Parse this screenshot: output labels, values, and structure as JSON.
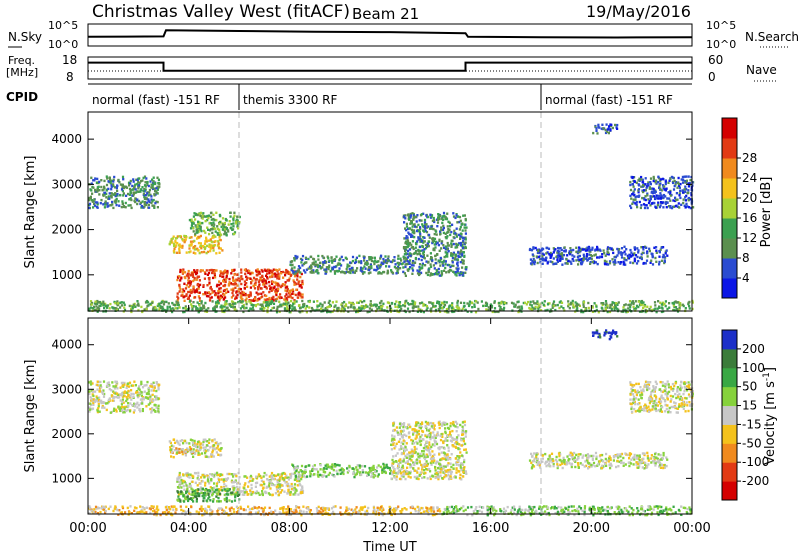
{
  "header": {
    "title": "Christmas Valley West (fitACF)",
    "beam": "Beam 21",
    "date": "19/May/2016"
  },
  "chart_data": [
    {
      "type": "line",
      "panel": "noise",
      "left_label": "N.Sky",
      "right_label": "N.Search",
      "left_ticks": [
        "10^5",
        "10^0"
      ],
      "right_ticks": [
        "10^5",
        "10^0"
      ],
      "x": [
        0,
        3,
        3.1,
        6,
        9,
        12,
        15,
        15.1,
        18,
        21,
        24
      ],
      "series": [
        {
          "values": [
            2.0,
            2.1,
            3.8,
            3.6,
            3.4,
            3.3,
            3.0,
            2.0,
            1.9,
            1.8,
            1.9
          ]
        }
      ]
    },
    {
      "type": "line",
      "panel": "frequency",
      "left_label_line1": "Freq.",
      "left_label_line2": "[MHz]",
      "right_label": "Nave",
      "left_ticks": [
        "18",
        "8"
      ],
      "right_ticks": [
        "60",
        "0"
      ],
      "ylim": [
        8,
        18
      ],
      "x": [
        0,
        3,
        3,
        15,
        15,
        24
      ],
      "series": [
        {
          "values": [
            16,
            16,
            11.5,
            11.5,
            16,
            16
          ]
        }
      ]
    },
    {
      "type": "table",
      "panel": "cpid",
      "label": "CPID",
      "segments": [
        {
          "start": 0,
          "end": 6,
          "text": "normal (fast) -151 RF"
        },
        {
          "start": 6,
          "end": 18,
          "text": "themis 3300 RF"
        },
        {
          "start": 18,
          "end": 24,
          "text": "normal (fast) -151 RF"
        }
      ]
    },
    {
      "type": "heatmap",
      "panel": "power",
      "ylabel": "Slant Range [km]",
      "colorbar_label": "Power [dB]",
      "colorbar_ticks": [
        "4",
        "8",
        "12",
        "16",
        "20",
        "24",
        "28"
      ],
      "colorbar_colors": [
        "#0b16e6",
        "#2a4bd1",
        "#5b8f4f",
        "#3ba050",
        "#a8d236",
        "#f4c21c",
        "#f08a1e",
        "#e23a14",
        "#d40000"
      ],
      "xlim": [
        0,
        24
      ],
      "ylim": [
        200,
        4600
      ],
      "y_ticks": [
        1000,
        2000,
        3000,
        4000
      ],
      "regions": [
        {
          "x": [
            0.0,
            2.8
          ],
          "y": [
            2500,
            3200
          ],
          "level": 2
        },
        {
          "x": [
            3.2,
            5.3
          ],
          "y": [
            1500,
            1900
          ],
          "level": 5
        },
        {
          "x": [
            3.5,
            8.5
          ],
          "y": [
            450,
            1150
          ],
          "level": 7
        },
        {
          "x": [
            4.0,
            6.0
          ],
          "y": [
            1900,
            2400
          ],
          "level": 3
        },
        {
          "x": [
            8.0,
            12.5
          ],
          "y": [
            1050,
            1450
          ],
          "level": 2
        },
        {
          "x": [
            12.5,
            15.0
          ],
          "y": [
            1000,
            2400
          ],
          "level": 2
        },
        {
          "x": [
            17.5,
            23.0
          ],
          "y": [
            1250,
            1650
          ],
          "level": 1
        },
        {
          "x": [
            20.0,
            21.0
          ],
          "y": [
            4150,
            4350
          ],
          "level": 1
        },
        {
          "x": [
            21.5,
            24.0
          ],
          "y": [
            2500,
            3200
          ],
          "level": 1
        },
        {
          "x": [
            0.0,
            24.0
          ],
          "y": [
            200,
            450
          ],
          "level": 3
        }
      ]
    },
    {
      "type": "heatmap",
      "panel": "velocity",
      "ylabel": "Slant Range [km]",
      "colorbar_label": "Velocity [m s",
      "colorbar_label_sup": "-1",
      "colorbar_label_end": "]",
      "colorbar_ticks": [
        "200",
        "100",
        "50",
        "15",
        "-15",
        "-50",
        "-100",
        "-200"
      ],
      "colorbar_colors": [
        "#1c2fc8",
        "#3b7c3a",
        "#39a844",
        "#86d23c",
        "#c7c7c7",
        "#f4c21c",
        "#f08a1e",
        "#e23a14",
        "#d40000"
      ],
      "xlim": [
        0,
        24
      ],
      "ylim": [
        200,
        4600
      ],
      "y_ticks": [
        1000,
        2000,
        3000,
        4000
      ],
      "x_ticks": [
        "00:00",
        "04:00",
        "08:00",
        "12:00",
        "16:00",
        "20:00",
        "00:00"
      ],
      "xlabel": "Time UT",
      "regions": [
        {
          "x": [
            0.0,
            2.8
          ],
          "y": [
            2500,
            3200
          ],
          "level": 4
        },
        {
          "x": [
            3.2,
            5.3
          ],
          "y": [
            1500,
            1900
          ],
          "level": 4
        },
        {
          "x": [
            3.2,
            4.5
          ],
          "y": [
            1600,
            1700
          ],
          "level": 5
        },
        {
          "x": [
            3.5,
            8.5
          ],
          "y": [
            650,
            1150
          ],
          "level": 4
        },
        {
          "x": [
            3.5,
            6.0
          ],
          "y": [
            500,
            800
          ],
          "level": 2
        },
        {
          "x": [
            8.0,
            12.0
          ],
          "y": [
            1050,
            1350
          ],
          "level": 3
        },
        {
          "x": [
            12.0,
            15.0
          ],
          "y": [
            1000,
            2300
          ],
          "level": 4
        },
        {
          "x": [
            17.5,
            23.0
          ],
          "y": [
            1250,
            1600
          ],
          "level": 4
        },
        {
          "x": [
            20.0,
            21.0
          ],
          "y": [
            4150,
            4350
          ],
          "level": 0
        },
        {
          "x": [
            21.5,
            24.0
          ],
          "y": [
            2500,
            3200
          ],
          "level": 4
        },
        {
          "x": [
            14.0,
            24.0
          ],
          "y": [
            200,
            400
          ],
          "level": 3
        },
        {
          "x": [
            0.0,
            14.0
          ],
          "y": [
            200,
            400
          ],
          "level": 5
        }
      ]
    }
  ]
}
